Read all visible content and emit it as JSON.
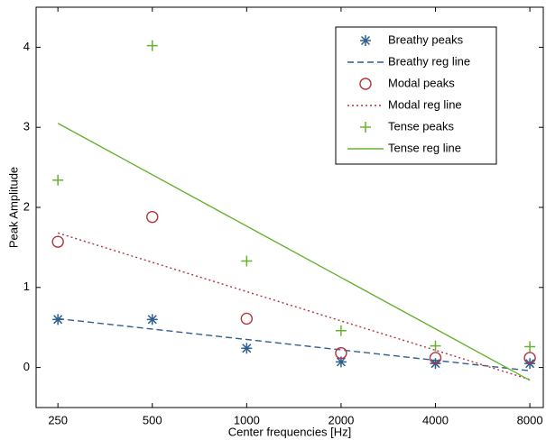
{
  "chart_data": {
    "type": "line",
    "xlabel": "Center frequencies [Hz]",
    "ylabel": "Peak Amplitude",
    "x": [
      250,
      500,
      1000,
      2000,
      4000,
      8000
    ],
    "xscale": "log",
    "xlim": [
      213,
      8830
    ],
    "xticks": [
      250,
      500,
      1000,
      2000,
      4000,
      8000
    ],
    "ylim": [
      -0.5,
      4.5
    ],
    "yticks": [
      0,
      1,
      2,
      3,
      4
    ],
    "grid": false,
    "legend": "upper right",
    "series": [
      {
        "name": "Breathy peaks",
        "color": "#2f5f8f",
        "marker": "asterisk",
        "values": [
          0.6,
          0.6,
          0.24,
          0.07,
          0.05,
          0.05
        ]
      },
      {
        "name": "Breathy reg line",
        "color": "#2f5f8f",
        "dash": "dashed",
        "x": [
          250,
          8000
        ],
        "values": [
          0.61,
          -0.04
        ]
      },
      {
        "name": "Modal peaks",
        "color": "#b3333f",
        "marker": "circle",
        "values": [
          1.57,
          1.88,
          0.61,
          0.18,
          0.12,
          0.12
        ]
      },
      {
        "name": "Modal reg line",
        "color": "#b3333f",
        "dash": "dotted",
        "x": [
          250,
          8000
        ],
        "values": [
          1.68,
          -0.15
        ]
      },
      {
        "name": "Tense peaks",
        "color": "#66b22e",
        "marker": "plus",
        "values": [
          2.34,
          4.02,
          1.33,
          0.46,
          0.27,
          0.26
        ]
      },
      {
        "name": "Tense reg line",
        "color": "#66b22e",
        "dash": "solid",
        "x": [
          250,
          8000
        ],
        "values": [
          3.05,
          -0.16
        ]
      }
    ]
  }
}
